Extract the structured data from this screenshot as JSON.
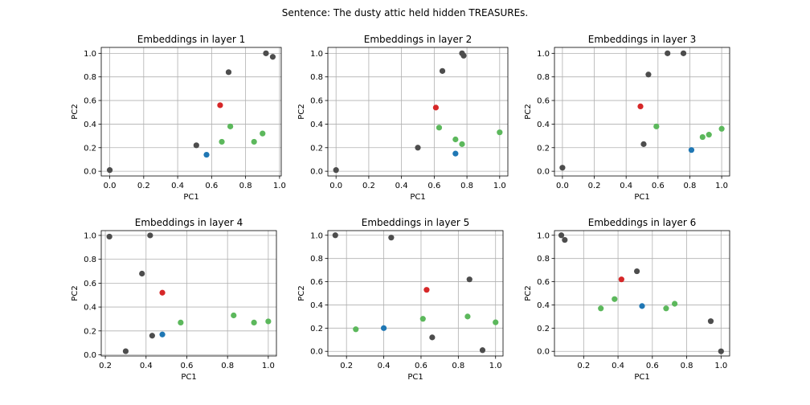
{
  "figure": {
    "suptitle": "Sentence: The dusty attic held hidden TREASUREs."
  },
  "colors": {
    "gray": "#4d4d4d",
    "red": "#d62728",
    "blue": "#1f77b4",
    "green": "#5cb85c"
  },
  "chart_data": [
    {
      "type": "scatter",
      "title": "Embeddings in layer 1",
      "xlabel": "PC1",
      "ylabel": "PC2",
      "xlim": [
        -0.05,
        1.01
      ],
      "ylim": [
        -0.04,
        1.05
      ],
      "xticks": [
        "0.0",
        "0.2",
        "0.4",
        "0.6",
        "0.8",
        "1.0"
      ],
      "yticks": [
        "0.0",
        "0.2",
        "0.4",
        "0.6",
        "0.8",
        "1.0"
      ],
      "grid": true,
      "points": [
        {
          "x": 0.0,
          "y": 0.01,
          "c": "gray"
        },
        {
          "x": 0.51,
          "y": 0.22,
          "c": "gray"
        },
        {
          "x": 0.7,
          "y": 0.84,
          "c": "gray"
        },
        {
          "x": 0.92,
          "y": 1.0,
          "c": "gray"
        },
        {
          "x": 0.96,
          "y": 0.97,
          "c": "gray"
        },
        {
          "x": 0.65,
          "y": 0.56,
          "c": "red"
        },
        {
          "x": 0.57,
          "y": 0.14,
          "c": "blue"
        },
        {
          "x": 0.66,
          "y": 0.25,
          "c": "green"
        },
        {
          "x": 0.71,
          "y": 0.38,
          "c": "green"
        },
        {
          "x": 0.85,
          "y": 0.25,
          "c": "green"
        },
        {
          "x": 0.9,
          "y": 0.32,
          "c": "green"
        }
      ]
    },
    {
      "type": "scatter",
      "title": "Embeddings in layer 2",
      "xlabel": "PC1",
      "ylabel": "PC2",
      "xlim": [
        -0.05,
        1.05
      ],
      "ylim": [
        -0.04,
        1.05
      ],
      "xticks": [
        "0.0",
        "0.2",
        "0.4",
        "0.6",
        "0.8",
        "1.0"
      ],
      "yticks": [
        "0.0",
        "0.2",
        "0.4",
        "0.6",
        "0.8",
        "1.0"
      ],
      "grid": true,
      "points": [
        {
          "x": 0.0,
          "y": 0.01,
          "c": "gray"
        },
        {
          "x": 0.5,
          "y": 0.2,
          "c": "gray"
        },
        {
          "x": 0.65,
          "y": 0.85,
          "c": "gray"
        },
        {
          "x": 0.77,
          "y": 1.0,
          "c": "gray"
        },
        {
          "x": 0.78,
          "y": 0.98,
          "c": "gray"
        },
        {
          "x": 0.61,
          "y": 0.54,
          "c": "red"
        },
        {
          "x": 0.73,
          "y": 0.15,
          "c": "blue"
        },
        {
          "x": 0.63,
          "y": 0.37,
          "c": "green"
        },
        {
          "x": 0.73,
          "y": 0.27,
          "c": "green"
        },
        {
          "x": 0.77,
          "y": 0.23,
          "c": "green"
        },
        {
          "x": 1.0,
          "y": 0.33,
          "c": "green"
        }
      ]
    },
    {
      "type": "scatter",
      "title": "Embeddings in layer 3",
      "xlabel": "PC1",
      "ylabel": "PC2",
      "xlim": [
        -0.05,
        1.05
      ],
      "ylim": [
        -0.04,
        1.05
      ],
      "xticks": [
        "0.0",
        "0.2",
        "0.4",
        "0.6",
        "0.8",
        "1.0"
      ],
      "yticks": [
        "0.0",
        "0.2",
        "0.4",
        "0.6",
        "0.8",
        "1.0"
      ],
      "grid": true,
      "points": [
        {
          "x": 0.0,
          "y": 0.03,
          "c": "gray"
        },
        {
          "x": 0.51,
          "y": 0.23,
          "c": "gray"
        },
        {
          "x": 0.54,
          "y": 0.82,
          "c": "gray"
        },
        {
          "x": 0.66,
          "y": 1.0,
          "c": "gray"
        },
        {
          "x": 0.76,
          "y": 1.0,
          "c": "gray"
        },
        {
          "x": 0.49,
          "y": 0.55,
          "c": "red"
        },
        {
          "x": 0.81,
          "y": 0.18,
          "c": "blue"
        },
        {
          "x": 0.59,
          "y": 0.38,
          "c": "green"
        },
        {
          "x": 0.88,
          "y": 0.29,
          "c": "green"
        },
        {
          "x": 0.92,
          "y": 0.31,
          "c": "green"
        },
        {
          "x": 1.0,
          "y": 0.36,
          "c": "green"
        }
      ]
    },
    {
      "type": "scatter",
      "title": "Embeddings in layer 4",
      "xlabel": "PC1",
      "ylabel": "PC2",
      "xlim": [
        0.18,
        1.04
      ],
      "ylim": [
        -0.01,
        1.04
      ],
      "xticks": [
        "0.2",
        "0.4",
        "0.6",
        "0.8",
        "1.0"
      ],
      "yticks": [
        "0.0",
        "0.2",
        "0.4",
        "0.6",
        "0.8",
        "1.0"
      ],
      "grid": true,
      "points": [
        {
          "x": 0.22,
          "y": 0.99,
          "c": "gray"
        },
        {
          "x": 0.3,
          "y": 0.03,
          "c": "gray"
        },
        {
          "x": 0.38,
          "y": 0.68,
          "c": "gray"
        },
        {
          "x": 0.42,
          "y": 1.0,
          "c": "gray"
        },
        {
          "x": 0.43,
          "y": 0.16,
          "c": "gray"
        },
        {
          "x": 0.48,
          "y": 0.52,
          "c": "red"
        },
        {
          "x": 0.48,
          "y": 0.17,
          "c": "blue"
        },
        {
          "x": 0.57,
          "y": 0.27,
          "c": "green"
        },
        {
          "x": 0.83,
          "y": 0.33,
          "c": "green"
        },
        {
          "x": 0.93,
          "y": 0.27,
          "c": "green"
        },
        {
          "x": 1.0,
          "y": 0.28,
          "c": "green"
        }
      ]
    },
    {
      "type": "scatter",
      "title": "Embeddings in layer 5",
      "xlabel": "PC1",
      "ylabel": "PC2",
      "xlim": [
        0.1,
        1.04
      ],
      "ylim": [
        -0.04,
        1.04
      ],
      "xticks": [
        "0.2",
        "0.4",
        "0.6",
        "0.8",
        "1.0"
      ],
      "yticks": [
        "0.0",
        "0.2",
        "0.4",
        "0.6",
        "0.8",
        "1.0"
      ],
      "grid": true,
      "points": [
        {
          "x": 0.14,
          "y": 1.0,
          "c": "gray"
        },
        {
          "x": 0.44,
          "y": 0.98,
          "c": "gray"
        },
        {
          "x": 0.66,
          "y": 0.12,
          "c": "gray"
        },
        {
          "x": 0.86,
          "y": 0.62,
          "c": "gray"
        },
        {
          "x": 0.93,
          "y": 0.01,
          "c": "gray"
        },
        {
          "x": 0.63,
          "y": 0.53,
          "c": "red"
        },
        {
          "x": 0.4,
          "y": 0.2,
          "c": "blue"
        },
        {
          "x": 0.25,
          "y": 0.19,
          "c": "green"
        },
        {
          "x": 0.61,
          "y": 0.28,
          "c": "green"
        },
        {
          "x": 0.85,
          "y": 0.3,
          "c": "green"
        },
        {
          "x": 1.0,
          "y": 0.25,
          "c": "green"
        }
      ]
    },
    {
      "type": "scatter",
      "title": "Embeddings in layer 6",
      "xlabel": "PC1",
      "ylabel": "PC2",
      "xlim": [
        0.03,
        1.05
      ],
      "ylim": [
        -0.04,
        1.04
      ],
      "xticks": [
        "0.2",
        "0.4",
        "0.6",
        "0.8",
        "1.0"
      ],
      "yticks": [
        "0.0",
        "0.2",
        "0.4",
        "0.6",
        "0.8",
        "1.0"
      ],
      "grid": true,
      "points": [
        {
          "x": 0.07,
          "y": 1.0,
          "c": "gray"
        },
        {
          "x": 0.09,
          "y": 0.96,
          "c": "gray"
        },
        {
          "x": 0.51,
          "y": 0.69,
          "c": "gray"
        },
        {
          "x": 0.94,
          "y": 0.26,
          "c": "gray"
        },
        {
          "x": 1.0,
          "y": 0.0,
          "c": "gray"
        },
        {
          "x": 0.42,
          "y": 0.62,
          "c": "red"
        },
        {
          "x": 0.54,
          "y": 0.39,
          "c": "blue"
        },
        {
          "x": 0.3,
          "y": 0.37,
          "c": "green"
        },
        {
          "x": 0.38,
          "y": 0.45,
          "c": "green"
        },
        {
          "x": 0.68,
          "y": 0.37,
          "c": "green"
        },
        {
          "x": 0.73,
          "y": 0.41,
          "c": "green"
        }
      ]
    }
  ]
}
